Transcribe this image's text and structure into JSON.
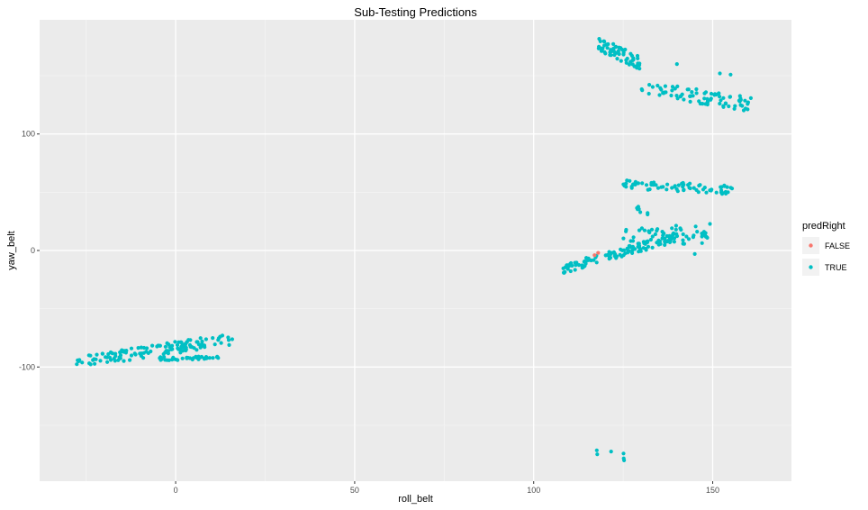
{
  "chart_data": {
    "type": "scatter",
    "title": "Sub-Testing Predictions",
    "xlabel": "roll_belt",
    "ylabel": "yaw_belt",
    "xlim": [
      -38,
      172
    ],
    "ylim": [
      -198,
      198
    ],
    "x_ticks": [
      0,
      50,
      100,
      150
    ],
    "y_ticks": [
      -100,
      0,
      100
    ],
    "x_tick_labels": [
      "0",
      "50",
      "100",
      "150"
    ],
    "y_tick_labels": [
      "-100",
      "0",
      "100"
    ],
    "grid": true,
    "legend": {
      "title": "predRight",
      "position": "right",
      "entries": [
        {
          "label": "FALSE",
          "color": "#F8766D"
        },
        {
          "label": "TRUE",
          "color": "#00BFC4"
        }
      ]
    },
    "series": [
      {
        "name": "FALSE",
        "color": "#F8766D",
        "points": [
          [
            117,
            -4
          ],
          [
            118,
            -2
          ]
        ]
      },
      {
        "name": "TRUE",
        "color": "#00BFC4",
        "clusters": [
          {
            "x": [
              -28,
              16
            ],
            "y_start": -96,
            "y_end": -76,
            "count": 130,
            "spread": 5
          },
          {
            "x": [
              -5,
              12
            ],
            "y_start": -93,
            "y_end": -92,
            "count": 40,
            "spread": 1.5
          },
          {
            "x": [
              118,
              130
            ],
            "y_start": 178,
            "y_end": 160,
            "count": 60,
            "spread": 6
          },
          {
            "x": [
              130,
              161
            ],
            "y_start": 140,
            "y_end": 125,
            "count": 80,
            "spread": 6
          },
          {
            "x": [
              125,
              156
            ],
            "y_start": 57,
            "y_end": 52,
            "count": 70,
            "spread": 4
          },
          {
            "x": [
              108,
              140
            ],
            "y_start": -16,
            "y_end": 12,
            "count": 110,
            "spread": 4
          },
          {
            "x": [
              125,
              150
            ],
            "y_start": 10,
            "y_end": 15,
            "count": 60,
            "spread": 9
          },
          {
            "x": [
              127,
              132
            ],
            "y_start": 42,
            "y_end": 30,
            "count": 8,
            "spread": 3
          },
          {
            "x": [
              116,
              126
            ],
            "y_start": -174,
            "y_end": -177,
            "count": 6,
            "spread": 4
          }
        ],
        "points": [
          [
            140,
            160
          ],
          [
            152,
            152
          ],
          [
            155,
            151
          ],
          [
            145,
            -3
          ],
          [
            147,
            12
          ],
          [
            148,
            15
          ]
        ]
      }
    ]
  }
}
